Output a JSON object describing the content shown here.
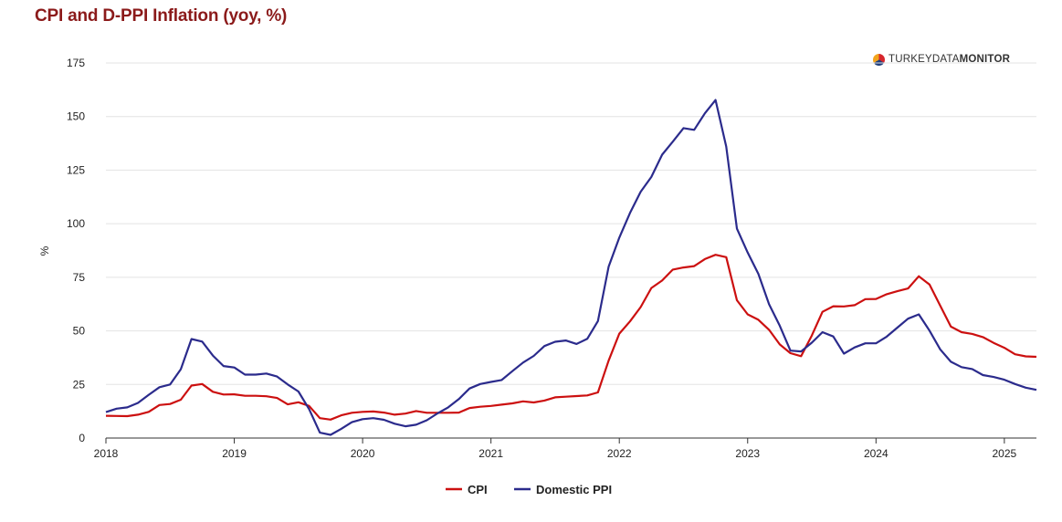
{
  "title": "CPI and D-PPI Inflation (yoy, %)",
  "logo": {
    "light": "TURKEYDATA",
    "bold": "MONITOR"
  },
  "chart_data": {
    "type": "line",
    "title": "CPI and D-PPI Inflation (yoy, %)",
    "ylabel": "%",
    "xlabel": "",
    "ylim": [
      0,
      175
    ],
    "xlim": [
      2018.0,
      2025.25
    ],
    "yticks": [
      0,
      25,
      50,
      75,
      100,
      125,
      150,
      175
    ],
    "xticks": [
      "2018",
      "2019",
      "2020",
      "2021",
      "2022",
      "2023",
      "2024",
      "2025"
    ],
    "grid": "horizontal",
    "legend_position": "bottom-center",
    "x_start": "2018-01",
    "x_frequency": "monthly",
    "series": [
      {
        "name": "CPI",
        "color": "#cc1010",
        "values": [
          10.4,
          10.3,
          10.2,
          10.9,
          12.2,
          15.4,
          15.9,
          17.9,
          24.5,
          25.2,
          21.6,
          20.3,
          20.4,
          19.7,
          19.7,
          19.5,
          18.7,
          15.7,
          16.7,
          15.0,
          9.3,
          8.6,
          10.6,
          11.8,
          12.2,
          12.4,
          11.9,
          10.9,
          11.4,
          12.6,
          11.8,
          11.8,
          11.8,
          11.9,
          14.0,
          14.6,
          15.0,
          15.6,
          16.2,
          17.1,
          16.6,
          17.5,
          19.0,
          19.3,
          19.6,
          19.9,
          21.3,
          36.1,
          48.7,
          54.4,
          61.1,
          70.0,
          73.5,
          78.6,
          79.6,
          80.2,
          83.5,
          85.5,
          84.4,
          64.3,
          57.7,
          55.2,
          50.5,
          43.7,
          39.6,
          38.2,
          47.8,
          58.9,
          61.5,
          61.4,
          62.0,
          64.8,
          64.9,
          67.1,
          68.5,
          69.8,
          75.5,
          71.6,
          61.8,
          52.0,
          49.4,
          48.6,
          47.1,
          44.4,
          42.1,
          39.1,
          38.1,
          37.9
        ]
      },
      {
        "name": "Domestic PPI",
        "color": "#2b2b8c",
        "values": [
          12.1,
          13.7,
          14.3,
          16.4,
          20.2,
          23.7,
          25.0,
          32.1,
          46.2,
          45.0,
          38.5,
          33.6,
          32.9,
          29.6,
          29.6,
          30.1,
          28.7,
          25.0,
          21.7,
          13.5,
          2.5,
          1.5,
          4.3,
          7.4,
          8.8,
          9.3,
          8.5,
          6.7,
          5.5,
          6.2,
          8.3,
          11.5,
          14.3,
          18.2,
          23.1,
          25.2,
          26.2,
          27.1,
          31.2,
          35.2,
          38.3,
          42.9,
          44.9,
          45.5,
          43.9,
          46.3,
          54.6,
          79.9,
          93.5,
          105.0,
          114.9,
          121.8,
          132.2,
          138.3,
          144.6,
          143.8,
          151.5,
          157.7,
          136.0,
          97.7,
          86.5,
          76.6,
          62.4,
          52.4,
          40.8,
          40.4,
          44.5,
          49.4,
          47.4,
          39.4,
          42.3,
          44.2,
          44.2,
          47.3,
          51.5,
          55.7,
          57.7,
          50.1,
          41.4,
          35.6,
          33.1,
          32.2,
          29.4,
          28.5,
          27.2,
          25.2,
          23.5,
          22.5
        ]
      }
    ]
  }
}
